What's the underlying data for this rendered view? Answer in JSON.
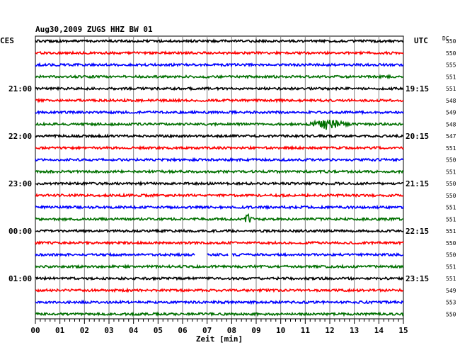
{
  "header": {
    "title": "Aug30,2009   ZUGS HHZ BW 01",
    "left_tz": "CES",
    "right_tz": "UTC",
    "dc_label": "DC"
  },
  "chart_data": {
    "type": "line",
    "title": "Aug30,2009   ZUGS HHZ BW 01",
    "xlabel": "Zeit [min]",
    "xlim": [
      0,
      15
    ],
    "x_ticks": [
      "00",
      "01",
      "02",
      "03",
      "04",
      "05",
      "06",
      "07",
      "08",
      "09",
      "10",
      "11",
      "12",
      "13",
      "14",
      "15"
    ],
    "trace_colors": [
      "#000000",
      "#ff0000",
      "#0000ff",
      "#007000"
    ],
    "traces": [
      {
        "dc": "550"
      },
      {
        "dc": "550"
      },
      {
        "dc": "555"
      },
      {
        "dc": "551"
      },
      {
        "left_time": "21:00",
        "right_time": "19:15",
        "dc": "551"
      },
      {
        "dc": "548"
      },
      {
        "dc": "549"
      },
      {
        "dc": "548",
        "event": {
          "start_min": 11.1,
          "peak_min": 11.9,
          "end_min": 12.8
        }
      },
      {
        "left_time": "22:00",
        "right_time": "20:15",
        "dc": "547"
      },
      {
        "dc": "551"
      },
      {
        "dc": "550"
      },
      {
        "dc": "551"
      },
      {
        "left_time": "23:00",
        "right_time": "21:15",
        "dc": "550"
      },
      {
        "dc": "550"
      },
      {
        "dc": "551"
      },
      {
        "dc": "551",
        "event": {
          "start_min": 8.5,
          "peak_min": 8.6,
          "end_min": 8.9
        }
      },
      {
        "left_time": "00:00",
        "right_time": "22:15",
        "dc": "551"
      },
      {
        "dc": "550"
      },
      {
        "dc": "550",
        "gaps": [
          [
            6.5,
            7.0
          ],
          [
            7.85,
            8.0
          ]
        ]
      },
      {
        "dc": "551"
      },
      {
        "left_time": "01:00",
        "right_time": "23:15",
        "dc": "551"
      },
      {
        "dc": "549"
      },
      {
        "dc": "553"
      },
      {
        "dc": "550"
      }
    ]
  }
}
